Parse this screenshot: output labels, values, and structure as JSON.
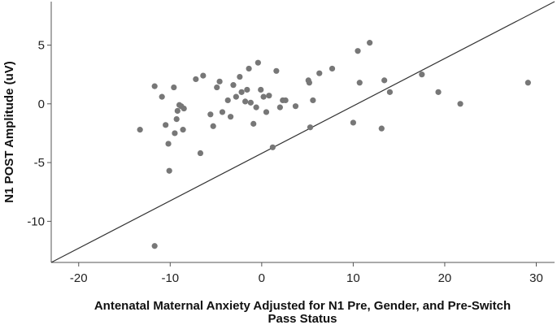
{
  "chart_data": {
    "type": "scatter",
    "title": "",
    "xlabel_lines": [
      "Antenatal Maternal Anxiety Adjusted for N1 Pre, Gender, and Pre-Switch",
      "Pass Status"
    ],
    "ylabel": "N1 POST Amplitude (uV)",
    "xlim": [
      -23,
      32
    ],
    "ylim": [
      -13.5,
      8.7
    ],
    "xticks": [
      -20,
      -10,
      0,
      10,
      20,
      30
    ],
    "yticks": [
      -10,
      -5,
      0,
      5
    ],
    "grid": false,
    "legend": "none",
    "colors": {
      "points": "#777777",
      "line": "#333333",
      "axis": "#555555"
    },
    "reference_line": {
      "label": "",
      "x": [
        -23,
        32
      ],
      "y": [
        -13.5,
        8.7
      ]
    },
    "points": [
      {
        "x": -13.3,
        "y": -2.2
      },
      {
        "x": -11.7,
        "y": 1.5
      },
      {
        "x": -11.7,
        "y": -12.1
      },
      {
        "x": -10.9,
        "y": 0.6
      },
      {
        "x": -10.5,
        "y": -1.8
      },
      {
        "x": -10.2,
        "y": -3.4
      },
      {
        "x": -10.1,
        "y": -5.7
      },
      {
        "x": -9.6,
        "y": 1.4
      },
      {
        "x": -9.5,
        "y": -2.5
      },
      {
        "x": -9.3,
        "y": -1.3
      },
      {
        "x": -9.2,
        "y": -0.6
      },
      {
        "x": -9.0,
        "y": -0.1
      },
      {
        "x": -8.8,
        "y": -0.2
      },
      {
        "x": -8.6,
        "y": -2.2
      },
      {
        "x": -8.5,
        "y": -0.4
      },
      {
        "x": -7.2,
        "y": 2.1
      },
      {
        "x": -6.7,
        "y": -4.2
      },
      {
        "x": -6.4,
        "y": 2.4
      },
      {
        "x": -5.6,
        "y": -0.9
      },
      {
        "x": -5.3,
        "y": -1.9
      },
      {
        "x": -4.9,
        "y": 1.4
      },
      {
        "x": -4.6,
        "y": 1.9
      },
      {
        "x": -4.3,
        "y": -0.7
      },
      {
        "x": -3.7,
        "y": 0.3
      },
      {
        "x": -3.4,
        "y": -1.1
      },
      {
        "x": -3.1,
        "y": 1.6
      },
      {
        "x": -2.8,
        "y": 0.6
      },
      {
        "x": -2.4,
        "y": 2.3
      },
      {
        "x": -2.2,
        "y": 1.0
      },
      {
        "x": -1.8,
        "y": 0.2
      },
      {
        "x": -1.6,
        "y": 1.2
      },
      {
        "x": -1.4,
        "y": 3.0
      },
      {
        "x": -1.2,
        "y": 0.1
      },
      {
        "x": -0.9,
        "y": -1.7
      },
      {
        "x": -0.6,
        "y": -0.3
      },
      {
        "x": -0.4,
        "y": 3.5
      },
      {
        "x": -0.1,
        "y": 1.2
      },
      {
        "x": 0.2,
        "y": 0.6
      },
      {
        "x": 0.5,
        "y": -0.7
      },
      {
        "x": 0.8,
        "y": 0.7
      },
      {
        "x": 1.2,
        "y": -3.7
      },
      {
        "x": 1.6,
        "y": 2.8
      },
      {
        "x": 2.0,
        "y": -0.3
      },
      {
        "x": 2.3,
        "y": 0.3
      },
      {
        "x": 2.6,
        "y": 0.3
      },
      {
        "x": 3.7,
        "y": -0.2
      },
      {
        "x": 5.1,
        "y": 2.0
      },
      {
        "x": 5.2,
        "y": 1.8
      },
      {
        "x": 5.3,
        "y": -2.0
      },
      {
        "x": 5.6,
        "y": 0.3
      },
      {
        "x": 6.3,
        "y": 2.6
      },
      {
        "x": 7.7,
        "y": 3.0
      },
      {
        "x": 10.0,
        "y": -1.6
      },
      {
        "x": 10.5,
        "y": 4.5
      },
      {
        "x": 10.7,
        "y": 1.8
      },
      {
        "x": 11.8,
        "y": 5.2
      },
      {
        "x": 13.1,
        "y": -2.1
      },
      {
        "x": 13.4,
        "y": 2.0
      },
      {
        "x": 14.0,
        "y": 1.0
      },
      {
        "x": 17.5,
        "y": 2.5
      },
      {
        "x": 19.3,
        "y": 1.0
      },
      {
        "x": 21.7,
        "y": 0.0
      },
      {
        "x": 29.1,
        "y": 1.8
      }
    ]
  }
}
